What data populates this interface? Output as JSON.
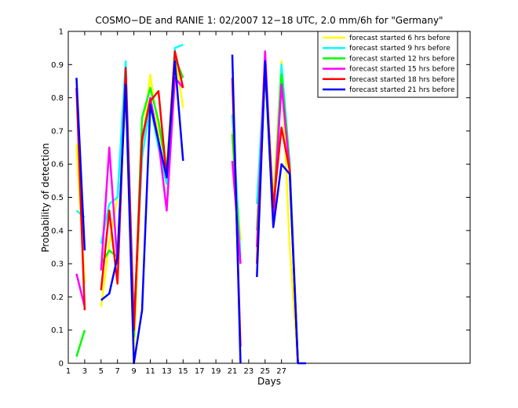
{
  "chart_data": {
    "type": "line",
    "title": "COSMO−DE and RANIE 1: 02/2007 12−18 UTC, 2.0 mm/6h for \"Germany\"",
    "xlabel": "Days",
    "ylabel": "Probability of detection",
    "xlim": [
      1,
      50
    ],
    "ylim": [
      0,
      1
    ],
    "xticks": [
      1,
      3,
      5,
      7,
      9,
      11,
      13,
      15,
      17,
      19,
      21,
      23,
      25,
      27
    ],
    "yticks": [
      0,
      0.1,
      0.2,
      0.3,
      0.4,
      0.5,
      0.6,
      0.7,
      0.8,
      0.9,
      1
    ],
    "ytick_labels": [
      "0",
      "0.1",
      "0.2",
      "0.3",
      "0.4",
      "0.5",
      "0.6",
      "0.7",
      "0.8",
      "0.9",
      "1"
    ],
    "grid": false,
    "legend_position": "top-right",
    "series": [
      {
        "name": "forecast started 6 hrs before",
        "color": "#ffff00",
        "segments": [
          [
            [
              2,
              0.66
            ],
            [
              3,
              0.24
            ]
          ],
          [
            [
              5,
              0.17
            ],
            [
              6,
              0.36
            ],
            [
              7,
              0.5
            ],
            [
              8,
              0.82
            ],
            [
              9,
              0.03
            ],
            [
              10,
              0.65
            ],
            [
              11,
              0.87
            ],
            [
              12,
              0.7
            ],
            [
              13,
              0.6
            ],
            [
              14,
              0.93
            ],
            [
              15,
              0.77
            ]
          ],
          [
            [
              21,
              0.7
            ],
            [
              22,
              0.37
            ]
          ],
          [
            [
              24,
              0.3
            ],
            [
              25,
              0.92
            ],
            [
              26,
              0.48
            ],
            [
              27,
              0.91
            ],
            [
              28,
              0.35
            ],
            [
              29,
              0.0
            ]
          ]
        ]
      },
      {
        "name": "forecast started 9 hrs before",
        "color": "#00ffff",
        "segments": [
          [
            [
              2,
              0.46
            ],
            [
              3,
              0.44
            ]
          ],
          [
            [
              5,
              0.36
            ],
            [
              6,
              0.48
            ],
            [
              7,
              0.5
            ],
            [
              8,
              0.91
            ],
            [
              9,
              0.13
            ],
            [
              10,
              0.62
            ],
            [
              11,
              0.78
            ],
            [
              12,
              0.65
            ],
            [
              13,
              0.54
            ],
            [
              14,
              0.95
            ],
            [
              15,
              0.96
            ]
          ],
          [
            [
              21,
              0.75
            ],
            [
              22,
              0.32
            ]
          ],
          [
            [
              24,
              0.48
            ],
            [
              25,
              0.91
            ],
            [
              26,
              0.42
            ],
            [
              27,
              0.9
            ],
            [
              28,
              0.6
            ],
            [
              29,
              0.0
            ]
          ]
        ]
      },
      {
        "name": "forecast started 12 hrs before",
        "color": "#00ff00",
        "segments": [
          [
            [
              2,
              0.02
            ],
            [
              3,
              0.1
            ]
          ],
          [
            [
              5,
              0.3
            ],
            [
              6,
              0.34
            ],
            [
              7,
              0.32
            ],
            [
              8,
              0.85
            ],
            [
              9,
              0.08
            ],
            [
              10,
              0.74
            ],
            [
              11,
              0.83
            ],
            [
              12,
              0.73
            ],
            [
              13,
              0.58
            ],
            [
              14,
              0.92
            ],
            [
              15,
              0.86
            ]
          ],
          [
            [
              21,
              0.69
            ],
            [
              22,
              0.3
            ]
          ],
          [
            [
              24,
              0.4
            ],
            [
              25,
              0.88
            ],
            [
              26,
              0.44
            ],
            [
              27,
              0.87
            ],
            [
              28,
              0.6
            ],
            [
              29,
              0.0
            ]
          ]
        ]
      },
      {
        "name": "forecast started 15 hrs before",
        "color": "#ff00ff",
        "segments": [
          [
            [
              2,
              0.27
            ],
            [
              3,
              0.17
            ]
          ],
          [
            [
              5,
              0.28
            ],
            [
              6,
              0.65
            ],
            [
              7,
              0.3
            ],
            [
              8,
              0.88
            ],
            [
              9,
              0.1
            ],
            [
              10,
              0.67
            ],
            [
              11,
              0.8
            ],
            [
              12,
              0.67
            ],
            [
              13,
              0.46
            ],
            [
              14,
              0.86
            ],
            [
              15,
              0.83
            ]
          ],
          [
            [
              21,
              0.61
            ],
            [
              22,
              0.3
            ]
          ],
          [
            [
              24,
              0.35
            ],
            [
              25,
              0.94
            ],
            [
              26,
              0.43
            ],
            [
              27,
              0.84
            ],
            [
              28,
              0.58
            ],
            [
              29,
              0.0
            ]
          ]
        ]
      },
      {
        "name": "forecast started 18 hrs before",
        "color": "#ff0000",
        "segments": [
          [
            [
              2,
              0.83
            ],
            [
              3,
              0.16
            ]
          ],
          [
            [
              5,
              0.22
            ],
            [
              6,
              0.46
            ],
            [
              7,
              0.24
            ],
            [
              8,
              0.89
            ],
            [
              9,
              0.1
            ],
            [
              10,
              0.68
            ],
            [
              11,
              0.79
            ],
            [
              12,
              0.82
            ],
            [
              13,
              0.56
            ],
            [
              14,
              0.94
            ],
            [
              15,
              0.83
            ]
          ],
          [
            [
              21,
              0.86
            ],
            [
              22,
              0.05
            ]
          ],
          [
            [
              24,
              0.3
            ],
            [
              25,
              0.9
            ],
            [
              26,
              0.47
            ],
            [
              27,
              0.71
            ],
            [
              28,
              0.58
            ],
            [
              29,
              0.0
            ]
          ]
        ]
      },
      {
        "name": "forecast started 21 hrs before",
        "color": "#0000ff",
        "segments": [
          [
            [
              2,
              0.86
            ],
            [
              3,
              0.34
            ]
          ],
          [
            [
              5,
              0.19
            ],
            [
              6,
              0.21
            ],
            [
              7,
              0.32
            ],
            [
              8,
              0.84
            ],
            [
              9,
              0.0
            ],
            [
              10,
              0.16
            ],
            [
              11,
              0.78
            ],
            [
              12,
              0.67
            ],
            [
              13,
              0.56
            ],
            [
              14,
              0.91
            ],
            [
              15,
              0.61
            ]
          ],
          [
            [
              21,
              0.93
            ],
            [
              22,
              0.0
            ]
          ],
          [
            [
              24,
              0.26
            ],
            [
              25,
              0.91
            ],
            [
              26,
              0.41
            ],
            [
              27,
              0.6
            ],
            [
              28,
              0.57
            ],
            [
              29,
              0.0
            ],
            [
              30,
              0.0
            ]
          ]
        ]
      }
    ]
  }
}
